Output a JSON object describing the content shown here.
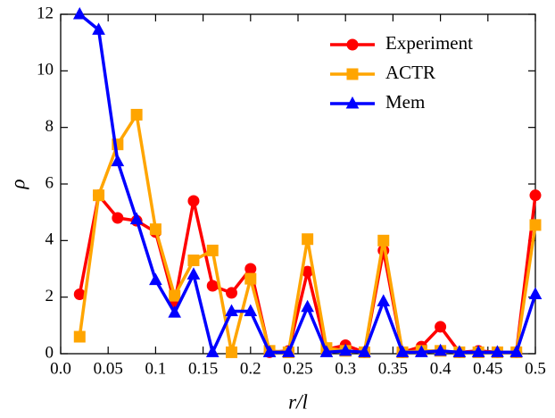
{
  "chart_data": {
    "type": "line",
    "xlabel": "r/l",
    "ylabel": "ρ",
    "x": [
      0.02,
      0.04,
      0.06,
      0.08,
      0.1,
      0.12,
      0.14,
      0.16,
      0.18,
      0.2,
      0.22,
      0.24,
      0.26,
      0.28,
      0.3,
      0.32,
      0.34,
      0.36,
      0.38,
      0.4,
      0.42,
      0.44,
      0.46,
      0.48,
      0.5
    ],
    "series": [
      {
        "name": "Experiment",
        "color": "#ff0000",
        "marker": "circle",
        "values": [
          2.1,
          5.6,
          4.8,
          4.7,
          4.3,
          1.8,
          5.4,
          2.4,
          2.15,
          3.0,
          0.05,
          0.1,
          2.9,
          0.15,
          0.3,
          0.05,
          3.65,
          0.05,
          0.25,
          0.95,
          0.05,
          0.1,
          0.05,
          0.05,
          5.6
        ]
      },
      {
        "name": "ACTR",
        "color": "#ffa500",
        "marker": "square",
        "values": [
          0.6,
          5.6,
          7.4,
          8.45,
          4.4,
          2.05,
          3.3,
          3.65,
          0.05,
          2.65,
          0.1,
          0.05,
          4.05,
          0.2,
          0.1,
          0.05,
          4.0,
          0.05,
          0.1,
          0.1,
          0.05,
          0.05,
          0.05,
          0.05,
          4.55
        ]
      },
      {
        "name": "Mem",
        "color": "#0000ff",
        "marker": "triangle",
        "values": [
          12.0,
          11.45,
          6.8,
          4.75,
          2.6,
          1.45,
          2.8,
          0.05,
          1.5,
          1.5,
          0.05,
          0.05,
          1.65,
          0.05,
          0.1,
          0.05,
          1.85,
          0.05,
          0.05,
          0.1,
          0.05,
          0.05,
          0.05,
          0.05,
          2.1
        ]
      }
    ],
    "xlim": [
      0,
      0.5
    ],
    "xticks": [
      {
        "value": 0,
        "label": "0.0"
      },
      0.05,
      0.1,
      0.15,
      0.2,
      0.25,
      0.3,
      0.35,
      0.4,
      0.45,
      0.5
    ],
    "ylim": [
      0,
      12
    ],
    "yticks": [
      0,
      2,
      4,
      6,
      8,
      10,
      12
    ],
    "legend": "upper right"
  }
}
